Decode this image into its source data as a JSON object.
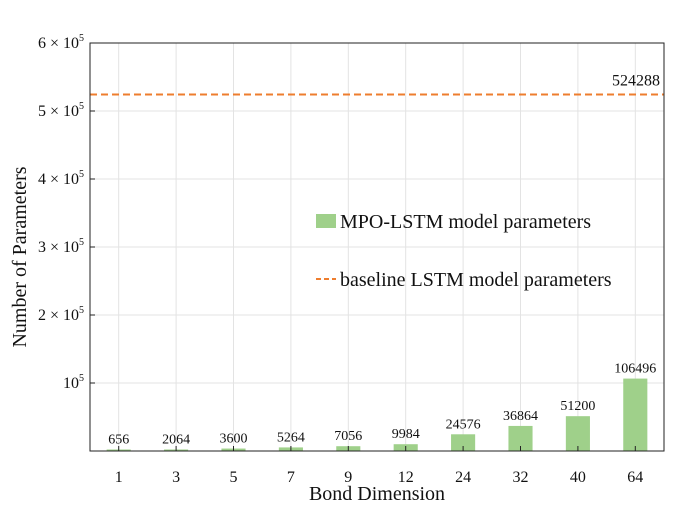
{
  "chart_data": {
    "type": "bar",
    "xlabel": "Bond Dimension",
    "ylabel": "Number of Parameters",
    "categories": [
      "1",
      "3",
      "5",
      "7",
      "9",
      "12",
      "24",
      "32",
      "40",
      "64"
    ],
    "series": [
      {
        "name": "MPO-LSTM model parameters",
        "values": [
          656,
          2064,
          3600,
          5264,
          7056,
          9984,
          24576,
          36864,
          51200,
          106496
        ],
        "color": "#9fd08a"
      }
    ],
    "baseline": {
      "name": "baseline LSTM model parameters",
      "value": 524288,
      "label": "524288",
      "color": "#ee7d2e",
      "style": "dashed"
    },
    "ylim": [
      0,
      600000
    ],
    "yticks": [
      {
        "value": 100000,
        "mantissa": "",
        "exponent": "5"
      },
      {
        "value": 200000,
        "mantissa": "2",
        "exponent": "5"
      },
      {
        "value": 300000,
        "mantissa": "3",
        "exponent": "5"
      },
      {
        "value": 400000,
        "mantissa": "4",
        "exponent": "5"
      },
      {
        "value": 500000,
        "mantissa": "5",
        "exponent": "5"
      },
      {
        "value": 600000,
        "mantissa": "6",
        "exponent": "5"
      }
    ],
    "grid": true,
    "legend_position": "center-right"
  }
}
